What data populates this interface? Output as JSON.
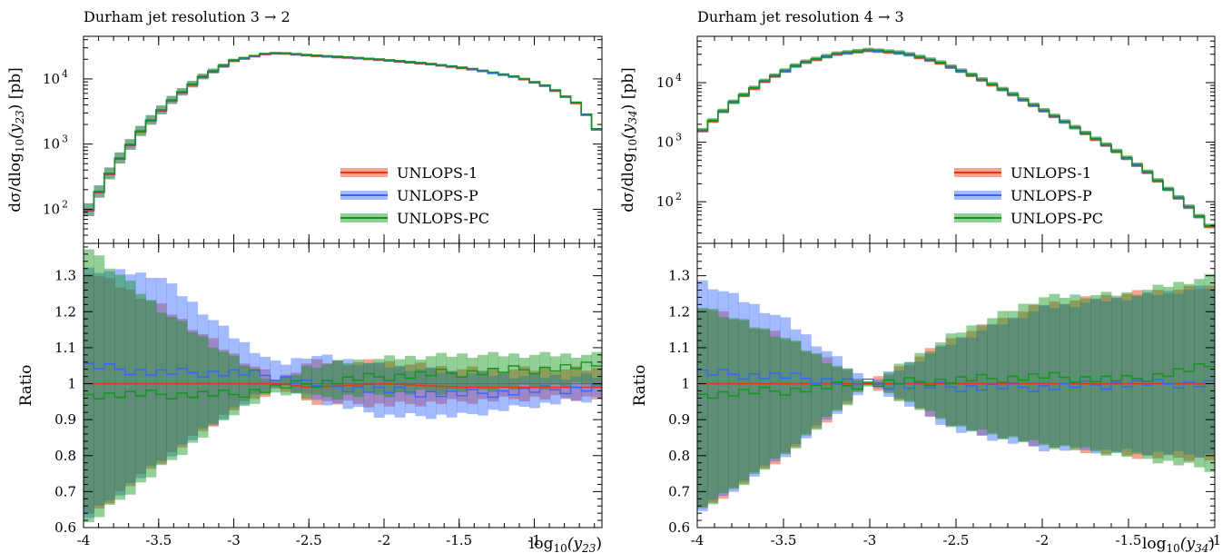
{
  "chart_data": [
    {
      "type": "line",
      "title": "Durham jet resolution 3 → 2",
      "ylabel": "dσ/dlog10(y23) [pb]",
      "ylabel_parts": {
        "pre": "dσ/dlog",
        "sub": "10",
        "mid": "(y",
        "sub2": "23",
        "post": ") [pb]"
      },
      "xlabel": "log10(y23)",
      "xlabel_parts": {
        "pre": "log",
        "sub": "10",
        "mid": "(y",
        "sub2": "23",
        "post": ")"
      },
      "xlim": [
        -4.0,
        -0.55
      ],
      "ylim_main": [
        30,
        45000
      ],
      "y_log": true,
      "ratio_label": "Ratio",
      "ratio_ylim": [
        0.6,
        1.39
      ],
      "x_ticks": [
        -4,
        -3.5,
        -3,
        -2.5,
        -2,
        -1.5,
        -1
      ],
      "x_tick_labels": [
        "-4",
        "-3.5",
        "-3",
        "-2.5",
        "-2",
        "-1.5",
        "-1"
      ],
      "y_ticks_main": [
        {
          "value": 100,
          "exp": "2"
        },
        {
          "value": 1000,
          "exp": "3"
        },
        {
          "value": 10000,
          "exp": "4"
        }
      ],
      "y_ticks_ratio": [
        0.6,
        0.7,
        0.8,
        0.9,
        1,
        1.1,
        1.2,
        1.3
      ],
      "y_tick_labels_ratio": [
        "0.6",
        "0.7",
        "0.8",
        "0.9",
        "1",
        "1.1",
        "1.2",
        "1.3"
      ],
      "legend": [
        "UNLOPS-1",
        "UNLOPS-P",
        "UNLOPS-PC"
      ],
      "legend_position": "center-right",
      "central_curve": {
        "x": [
          -4.0,
          -3.8,
          -3.6,
          -3.4,
          -3.2,
          -3.0,
          -2.8,
          -2.7,
          -2.5,
          -2.2,
          -2.0,
          -1.7,
          -1.4,
          -1.1,
          -0.9,
          -0.7,
          -0.55
        ],
        "y": [
          70,
          450,
          1800,
          5000,
          11000,
          19000,
          24000,
          25000,
          23000,
          21000,
          19500,
          17000,
          14000,
          10500,
          7500,
          4000,
          1300
        ]
      },
      "band_halfwidth": {
        "x": [
          -4.0,
          -3.5,
          -3.0,
          -2.7,
          -2.5,
          -2.0,
          -1.5,
          -1.0,
          -0.55
        ],
        "y": [
          0.32,
          0.22,
          0.08,
          0.01,
          0.04,
          0.05,
          0.05,
          0.04,
          0.04
        ]
      },
      "series": [
        {
          "name": "UNLOPS-1",
          "color": "#ee3311",
          "ratio": {
            "x": [
              -4.0,
              -3.5,
              -3.0,
              -2.7,
              -2.5,
              -2.0,
              -1.5,
              -1.0,
              -0.55
            ],
            "y": [
              1.0,
              1.0,
              1.0,
              1.0,
              0.99,
              1.0,
              0.99,
              0.99,
              0.99
            ]
          },
          "upper": {
            "x": [
              -4.0,
              -3.5,
              -3.0,
              -2.7,
              -2.5,
              -2.0,
              -1.5,
              -1.0,
              -0.55
            ],
            "y": [
              1.32,
              1.22,
              1.08,
              1.01,
              1.06,
              1.06,
              1.04,
              1.04,
              1.04
            ]
          },
          "lower": {
            "x": [
              -4.0,
              -3.5,
              -3.0,
              -2.7,
              -2.5,
              -2.0,
              -1.5,
              -1.0,
              -0.55
            ],
            "y": [
              0.62,
              0.78,
              0.93,
              0.99,
              0.95,
              0.94,
              0.95,
              0.96,
              0.96
            ]
          }
        },
        {
          "name": "UNLOPS-P",
          "color": "#3366ff",
          "ratio": {
            "x": [
              -4.0,
              -3.5,
              -3.0,
              -2.7,
              -2.5,
              -2.0,
              -1.5,
              -1.0,
              -0.55
            ],
            "y": [
              1.05,
              1.03,
              1.03,
              1.02,
              1.0,
              0.98,
              0.97,
              0.98,
              0.99
            ]
          },
          "upper": {
            "x": [
              -4.0,
              -3.5,
              -3.0,
              -2.7,
              -2.5,
              -2.0,
              -1.5,
              -1.0,
              -0.55
            ],
            "y": [
              1.32,
              1.3,
              1.13,
              1.05,
              1.08,
              1.05,
              1.03,
              1.02,
              1.02
            ]
          },
          "lower": {
            "x": [
              -4.0,
              -3.5,
              -3.0,
              -2.7,
              -2.5,
              -2.0,
              -1.5,
              -1.0,
              -0.55
            ],
            "y": [
              0.62,
              0.78,
              0.93,
              1.0,
              0.96,
              0.91,
              0.91,
              0.94,
              0.96
            ]
          }
        },
        {
          "name": "UNLOPS-PC",
          "color": "#109618",
          "ratio": {
            "x": [
              -4.0,
              -3.5,
              -3.0,
              -2.7,
              -2.5,
              -2.0,
              -1.5,
              -1.0,
              -0.55
            ],
            "y": [
              0.97,
              0.97,
              0.97,
              0.99,
              1.0,
              1.02,
              1.03,
              1.04,
              1.05
            ]
          },
          "upper": {
            "x": [
              -4.0,
              -3.5,
              -3.0,
              -2.7,
              -2.5,
              -2.0,
              -1.5,
              -1.0,
              -0.55
            ],
            "y": [
              1.39,
              1.21,
              1.07,
              1.0,
              1.05,
              1.07,
              1.08,
              1.08,
              1.08
            ]
          },
          "lower": {
            "x": [
              -4.0,
              -3.5,
              -3.0,
              -2.7,
              -2.5,
              -2.0,
              -1.5,
              -1.0,
              -0.55
            ],
            "y": [
              0.6,
              0.76,
              0.92,
              0.98,
              0.96,
              0.97,
              0.98,
              0.99,
              1.0
            ]
          }
        }
      ]
    },
    {
      "type": "line",
      "title": "Durham jet resolution 4 → 3",
      "ylabel": "dσ/dlog10(y34) [pb]",
      "ylabel_parts": {
        "pre": "dσ/dlog",
        "sub": "10",
        "mid": "(y",
        "sub2": "34",
        "post": ") [pb]"
      },
      "xlabel": "log10(y34)",
      "xlabel_parts": {
        "pre": "log",
        "sub": "10",
        "mid": "(y",
        "sub2": "34",
        "post": ")"
      },
      "xlim": [
        -4.0,
        -1.0
      ],
      "ylim_main": [
        20,
        60000
      ],
      "y_log": true,
      "ratio_label": "Ratio",
      "ratio_ylim": [
        0.6,
        1.39
      ],
      "x_ticks": [
        -4,
        -3.5,
        -3,
        -2.5,
        -2,
        -1.5,
        -1
      ],
      "x_tick_labels": [
        "-4",
        "-3.5",
        "-3",
        "-2.5",
        "-2",
        "-1.5",
        "-1"
      ],
      "y_ticks_main": [
        {
          "value": 100,
          "exp": "2"
        },
        {
          "value": 1000,
          "exp": "3"
        },
        {
          "value": 10000,
          "exp": "4"
        }
      ],
      "y_ticks_ratio": [
        0.6,
        0.7,
        0.8,
        0.9,
        1,
        1.1,
        1.2,
        1.3
      ],
      "y_tick_labels_ratio": [
        "0.6",
        "0.7",
        "0.8",
        "0.9",
        "1",
        "1.1",
        "1.2",
        "1.3"
      ],
      "legend": [
        "UNLOPS-1",
        "UNLOPS-P",
        "UNLOPS-PC"
      ],
      "legend_position": "center-right",
      "central_curve": {
        "x": [
          -4.0,
          -3.8,
          -3.6,
          -3.4,
          -3.2,
          -3.0,
          -2.8,
          -2.6,
          -2.4,
          -2.2,
          -2.0,
          -1.8,
          -1.6,
          -1.4,
          -1.2,
          -1.1,
          -1.0
        ],
        "y": [
          1300,
          4500,
          11000,
          21000,
          30000,
          35000,
          31000,
          22000,
          13000,
          7000,
          3500,
          1700,
          800,
          330,
          110,
          60,
          32
        ]
      },
      "series": [
        {
          "name": "UNLOPS-1",
          "color": "#ee3311",
          "ratio": {
            "x": [
              -4.0,
              -3.5,
              -3.0,
              -2.5,
              -2.0,
              -1.5,
              -1.0
            ],
            "y": [
              1.0,
              1.0,
              1.0,
              1.0,
              1.0,
              1.0,
              1.0
            ]
          },
          "upper": {
            "x": [
              -4.0,
              -3.5,
              -3.0,
              -2.5,
              -2.0,
              -1.5,
              -1.0
            ],
            "y": [
              1.22,
              1.13,
              1.0,
              1.13,
              1.22,
              1.25,
              1.27
            ]
          },
          "lower": {
            "x": [
              -4.0,
              -3.5,
              -3.0,
              -2.5,
              -2.0,
              -1.5,
              -1.0
            ],
            "y": [
              0.64,
              0.8,
              1.0,
              0.88,
              0.83,
              0.8,
              0.79
            ]
          }
        },
        {
          "name": "UNLOPS-P",
          "color": "#3366ff",
          "ratio": {
            "x": [
              -4.0,
              -3.5,
              -3.0,
              -2.5,
              -2.0,
              -1.5,
              -1.0
            ],
            "y": [
              1.03,
              1.02,
              1.0,
              0.99,
              0.99,
              1.0,
              1.0
            ]
          },
          "upper": {
            "x": [
              -4.0,
              -3.5,
              -3.0,
              -2.5,
              -2.0,
              -1.5,
              -1.0
            ],
            "y": [
              1.29,
              1.18,
              1.0,
              1.12,
              1.21,
              1.24,
              1.27
            ]
          },
          "lower": {
            "x": [
              -4.0,
              -3.5,
              -3.0,
              -2.5,
              -2.0,
              -1.5,
              -1.0
            ],
            "y": [
              0.64,
              0.8,
              1.0,
              0.87,
              0.82,
              0.81,
              0.8
            ]
          }
        },
        {
          "name": "UNLOPS-PC",
          "color": "#109618",
          "ratio": {
            "x": [
              -4.0,
              -3.5,
              -3.0,
              -2.5,
              -2.0,
              -1.5,
              -1.0
            ],
            "y": [
              0.97,
              0.98,
              1.0,
              1.01,
              1.02,
              1.01,
              1.05
            ]
          },
          "upper": {
            "x": [
              -4.0,
              -3.5,
              -3.0,
              -2.5,
              -2.0,
              -1.5,
              -1.0
            ],
            "y": [
              1.22,
              1.13,
              1.0,
              1.14,
              1.24,
              1.25,
              1.3
            ]
          },
          "lower": {
            "x": [
              -4.0,
              -3.5,
              -3.0,
              -2.5,
              -2.0,
              -1.5,
              -1.0
            ],
            "y": [
              0.64,
              0.8,
              1.0,
              0.88,
              0.83,
              0.8,
              0.76
            ]
          }
        }
      ]
    }
  ]
}
